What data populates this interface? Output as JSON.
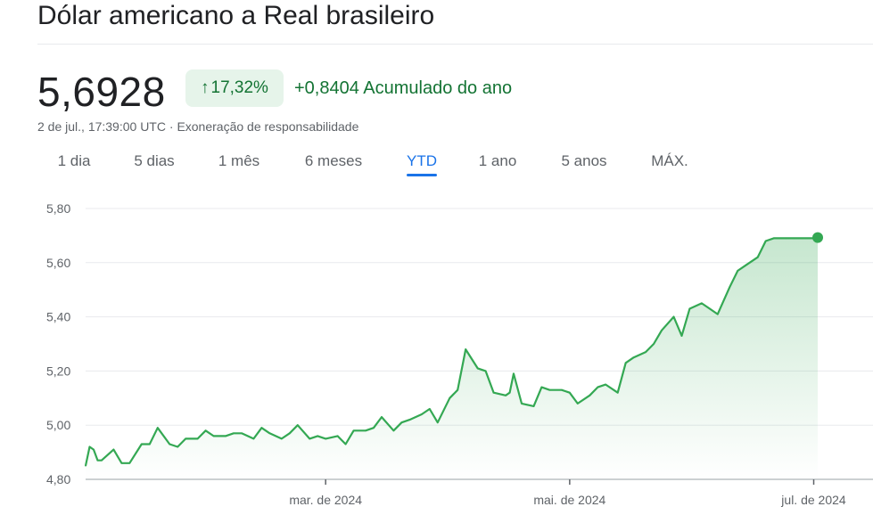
{
  "header": {
    "title": "Dólar americano a Real brasileiro"
  },
  "quote": {
    "price": "5,6928",
    "change_percent": "17,32%",
    "change_arrow_icon": "arrow-up-icon",
    "change_value": "+0,8404 Acumulado do ano",
    "timestamp": "2 de jul., 17:39:00 UTC",
    "separator": "·",
    "disclaimer": "Exoneração de responsabilidade"
  },
  "tabs": [
    {
      "label": "1 dia",
      "active": false
    },
    {
      "label": "5 dias",
      "active": false
    },
    {
      "label": "1 mês",
      "active": false
    },
    {
      "label": "6 meses",
      "active": false
    },
    {
      "label": "YTD",
      "active": true
    },
    {
      "label": "1 ano",
      "active": false
    },
    {
      "label": "5 anos",
      "active": false
    },
    {
      "label": "MÁX.",
      "active": false
    }
  ],
  "colors": {
    "line": "#34a853",
    "positive_text": "#137333",
    "badge_bg": "#e6f4ea",
    "active_tab": "#1a73e8",
    "grid": "#e8eaed"
  },
  "chart_data": {
    "type": "area",
    "title": "",
    "xlabel": "",
    "ylabel": "",
    "ylim": [
      4.8,
      5.8
    ],
    "yticks": [
      "5,80",
      "5,60",
      "5,40",
      "5,20",
      "5,00",
      "4,80"
    ],
    "ytick_values": [
      5.8,
      5.6,
      5.4,
      5.2,
      5.0,
      4.8
    ],
    "xticks": [
      {
        "label": "mar. de 2024",
        "date": "2024-03-01"
      },
      {
        "label": "mai. de 2024",
        "date": "2024-05-01"
      },
      {
        "label": "jul. de 2024",
        "date": "2024-07-01"
      }
    ],
    "grid": true,
    "legend": "none",
    "series": [
      {
        "x": [
          "2024-01-01",
          "2024-01-02",
          "2024-01-03",
          "2024-01-04",
          "2024-01-05",
          "2024-01-08",
          "2024-01-10",
          "2024-01-12",
          "2024-01-15",
          "2024-01-17",
          "2024-01-19",
          "2024-01-22",
          "2024-01-24",
          "2024-01-26",
          "2024-01-29",
          "2024-01-31",
          "2024-02-02",
          "2024-02-05",
          "2024-02-07",
          "2024-02-09",
          "2024-02-12",
          "2024-02-14",
          "2024-02-16",
          "2024-02-19",
          "2024-02-21",
          "2024-02-23",
          "2024-02-26",
          "2024-02-28",
          "2024-03-01",
          "2024-03-04",
          "2024-03-06",
          "2024-03-08",
          "2024-03-11",
          "2024-03-13",
          "2024-03-15",
          "2024-03-18",
          "2024-03-20",
          "2024-03-22",
          "2024-03-25",
          "2024-03-27",
          "2024-03-29",
          "2024-04-01",
          "2024-04-03",
          "2024-04-05",
          "2024-04-08",
          "2024-04-10",
          "2024-04-12",
          "2024-04-15",
          "2024-04-16",
          "2024-04-17",
          "2024-04-19",
          "2024-04-22",
          "2024-04-24",
          "2024-04-26",
          "2024-04-29",
          "2024-05-01",
          "2024-05-03",
          "2024-05-06",
          "2024-05-08",
          "2024-05-10",
          "2024-05-13",
          "2024-05-15",
          "2024-05-17",
          "2024-05-20",
          "2024-05-22",
          "2024-05-24",
          "2024-05-27",
          "2024-05-29",
          "2024-05-31",
          "2024-06-03",
          "2024-06-05",
          "2024-06-07",
          "2024-06-10",
          "2024-06-12",
          "2024-06-14",
          "2024-06-17",
          "2024-06-19",
          "2024-06-21",
          "2024-06-24",
          "2024-06-26",
          "2024-06-28",
          "2024-07-01",
          "2024-07-02"
        ],
        "values": [
          4.85,
          4.92,
          4.91,
          4.87,
          4.87,
          4.91,
          4.86,
          4.86,
          4.93,
          4.93,
          4.99,
          4.93,
          4.92,
          4.95,
          4.95,
          4.98,
          4.96,
          4.96,
          4.97,
          4.97,
          4.95,
          4.99,
          4.97,
          4.95,
          4.97,
          5.0,
          4.95,
          4.96,
          4.95,
          4.96,
          4.93,
          4.98,
          4.98,
          4.99,
          5.03,
          4.98,
          5.01,
          5.02,
          5.04,
          5.06,
          5.01,
          5.1,
          5.13,
          5.28,
          5.21,
          5.2,
          5.12,
          5.11,
          5.12,
          5.19,
          5.08,
          5.07,
          5.14,
          5.13,
          5.13,
          5.12,
          5.08,
          5.11,
          5.14,
          5.15,
          5.12,
          5.23,
          5.25,
          5.27,
          5.3,
          5.35,
          5.4,
          5.33,
          5.43,
          5.45,
          5.43,
          5.41,
          5.51,
          5.57,
          5.59,
          5.62,
          5.68,
          5.69,
          5.69,
          5.69,
          5.69,
          5.69,
          5.6928
        ]
      }
    ]
  }
}
